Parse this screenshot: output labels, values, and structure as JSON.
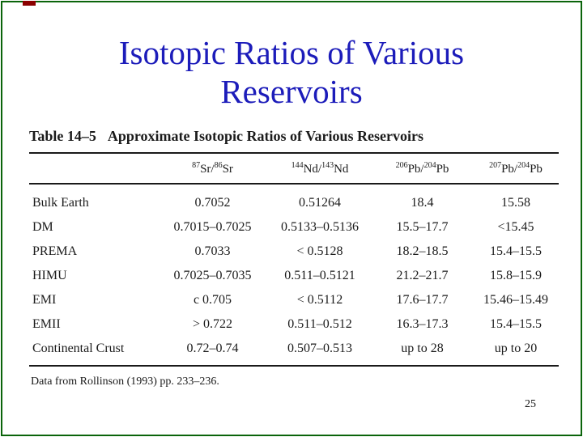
{
  "slide": {
    "title": {
      "line1": "Isotopic Ratios of Various",
      "line2": "Reservoirs"
    },
    "page_number": "25",
    "colors": {
      "title_text": "#1c1cba",
      "frame_border": "#0a640a",
      "corner_mark": "#8b0000",
      "table_text": "#1b1b1b"
    }
  },
  "table": {
    "caption_label": "Table 14–5",
    "caption_text": "Approximate Isotopic Ratios of Various Reservoirs",
    "columns": [
      {
        "sup_a": "87",
        "base_a": "Sr/",
        "sup_b": "86",
        "base_b": "Sr"
      },
      {
        "sup_a": "144",
        "base_a": "Nd/",
        "sup_b": "143",
        "base_b": "Nd"
      },
      {
        "sup_a": "206",
        "base_a": "Pb/",
        "sup_b": "204",
        "base_b": "Pb"
      },
      {
        "sup_a": "207",
        "base_a": "Pb/",
        "sup_b": "204",
        "base_b": "Pb"
      }
    ],
    "rows": [
      {
        "name": "Bulk Earth",
        "sr": "0.7052",
        "nd": "0.51264",
        "pb206": "18.4",
        "pb207": "15.58"
      },
      {
        "name": "DM",
        "sr": "0.7015–0.7025",
        "nd": "0.5133–0.5136",
        "pb206": "15.5–17.7",
        "pb207": "<15.45"
      },
      {
        "name": "PREMA",
        "sr": "0.7033",
        "nd": "< 0.5128",
        "pb206": "18.2–18.5",
        "pb207": "15.4–15.5"
      },
      {
        "name": "HIMU",
        "sr": "0.7025–0.7035",
        "nd": "0.511–0.5121",
        "pb206": "21.2–21.7",
        "pb207": "15.8–15.9"
      },
      {
        "name": "EMI",
        "sr": "c 0.705",
        "nd": "< 0.5112",
        "pb206": "17.6–17.7",
        "pb207": "15.46–15.49"
      },
      {
        "name": "EMII",
        "sr": "> 0.722",
        "nd": "0.511–0.512",
        "pb206": "16.3–17.3",
        "pb207": "15.4–15.5"
      },
      {
        "name": "Continental Crust",
        "sr": "0.72–0.74",
        "nd": "0.507–0.513",
        "pb206": "up to 28",
        "pb207": "up to 20"
      }
    ],
    "footnote": "Data from Rollinson (1993) pp. 233–236."
  }
}
